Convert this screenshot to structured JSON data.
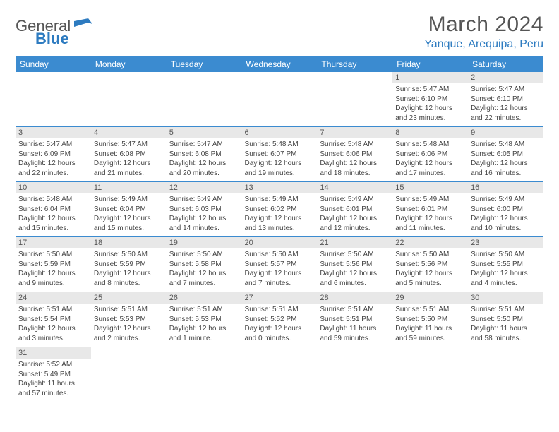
{
  "logo": {
    "text1": "General",
    "text2": "Blue"
  },
  "title": "March 2024",
  "location": "Yanque, Arequipa, Peru",
  "colors": {
    "header_bg": "#3b8bd0",
    "header_text": "#ffffff",
    "accent": "#2d7bc0",
    "daynum_bg": "#e8e8e8",
    "text": "#444444",
    "border": "#3b8bd0"
  },
  "dayHeaders": [
    "Sunday",
    "Monday",
    "Tuesday",
    "Wednesday",
    "Thursday",
    "Friday",
    "Saturday"
  ],
  "weeks": [
    [
      null,
      null,
      null,
      null,
      null,
      {
        "n": "1",
        "sr": "5:47 AM",
        "ss": "6:10 PM",
        "dl": "12 hours and 23 minutes."
      },
      {
        "n": "2",
        "sr": "5:47 AM",
        "ss": "6:10 PM",
        "dl": "12 hours and 22 minutes."
      }
    ],
    [
      {
        "n": "3",
        "sr": "5:47 AM",
        "ss": "6:09 PM",
        "dl": "12 hours and 22 minutes."
      },
      {
        "n": "4",
        "sr": "5:47 AM",
        "ss": "6:08 PM",
        "dl": "12 hours and 21 minutes."
      },
      {
        "n": "5",
        "sr": "5:47 AM",
        "ss": "6:08 PM",
        "dl": "12 hours and 20 minutes."
      },
      {
        "n": "6",
        "sr": "5:48 AM",
        "ss": "6:07 PM",
        "dl": "12 hours and 19 minutes."
      },
      {
        "n": "7",
        "sr": "5:48 AM",
        "ss": "6:06 PM",
        "dl": "12 hours and 18 minutes."
      },
      {
        "n": "8",
        "sr": "5:48 AM",
        "ss": "6:06 PM",
        "dl": "12 hours and 17 minutes."
      },
      {
        "n": "9",
        "sr": "5:48 AM",
        "ss": "6:05 PM",
        "dl": "12 hours and 16 minutes."
      }
    ],
    [
      {
        "n": "10",
        "sr": "5:48 AM",
        "ss": "6:04 PM",
        "dl": "12 hours and 15 minutes."
      },
      {
        "n": "11",
        "sr": "5:49 AM",
        "ss": "6:04 PM",
        "dl": "12 hours and 15 minutes."
      },
      {
        "n": "12",
        "sr": "5:49 AM",
        "ss": "6:03 PM",
        "dl": "12 hours and 14 minutes."
      },
      {
        "n": "13",
        "sr": "5:49 AM",
        "ss": "6:02 PM",
        "dl": "12 hours and 13 minutes."
      },
      {
        "n": "14",
        "sr": "5:49 AM",
        "ss": "6:01 PM",
        "dl": "12 hours and 12 minutes."
      },
      {
        "n": "15",
        "sr": "5:49 AM",
        "ss": "6:01 PM",
        "dl": "12 hours and 11 minutes."
      },
      {
        "n": "16",
        "sr": "5:49 AM",
        "ss": "6:00 PM",
        "dl": "12 hours and 10 minutes."
      }
    ],
    [
      {
        "n": "17",
        "sr": "5:50 AM",
        "ss": "5:59 PM",
        "dl": "12 hours and 9 minutes."
      },
      {
        "n": "18",
        "sr": "5:50 AM",
        "ss": "5:59 PM",
        "dl": "12 hours and 8 minutes."
      },
      {
        "n": "19",
        "sr": "5:50 AM",
        "ss": "5:58 PM",
        "dl": "12 hours and 7 minutes."
      },
      {
        "n": "20",
        "sr": "5:50 AM",
        "ss": "5:57 PM",
        "dl": "12 hours and 7 minutes."
      },
      {
        "n": "21",
        "sr": "5:50 AM",
        "ss": "5:56 PM",
        "dl": "12 hours and 6 minutes."
      },
      {
        "n": "22",
        "sr": "5:50 AM",
        "ss": "5:56 PM",
        "dl": "12 hours and 5 minutes."
      },
      {
        "n": "23",
        "sr": "5:50 AM",
        "ss": "5:55 PM",
        "dl": "12 hours and 4 minutes."
      }
    ],
    [
      {
        "n": "24",
        "sr": "5:51 AM",
        "ss": "5:54 PM",
        "dl": "12 hours and 3 minutes."
      },
      {
        "n": "25",
        "sr": "5:51 AM",
        "ss": "5:53 PM",
        "dl": "12 hours and 2 minutes."
      },
      {
        "n": "26",
        "sr": "5:51 AM",
        "ss": "5:53 PM",
        "dl": "12 hours and 1 minute."
      },
      {
        "n": "27",
        "sr": "5:51 AM",
        "ss": "5:52 PM",
        "dl": "12 hours and 0 minutes."
      },
      {
        "n": "28",
        "sr": "5:51 AM",
        "ss": "5:51 PM",
        "dl": "11 hours and 59 minutes."
      },
      {
        "n": "29",
        "sr": "5:51 AM",
        "ss": "5:50 PM",
        "dl": "11 hours and 59 minutes."
      },
      {
        "n": "30",
        "sr": "5:51 AM",
        "ss": "5:50 PM",
        "dl": "11 hours and 58 minutes."
      }
    ],
    [
      {
        "n": "31",
        "sr": "5:52 AM",
        "ss": "5:49 PM",
        "dl": "11 hours and 57 minutes."
      },
      null,
      null,
      null,
      null,
      null,
      null
    ]
  ],
  "labels": {
    "sunrise": "Sunrise: ",
    "sunset": "Sunset: ",
    "daylight": "Daylight: "
  }
}
